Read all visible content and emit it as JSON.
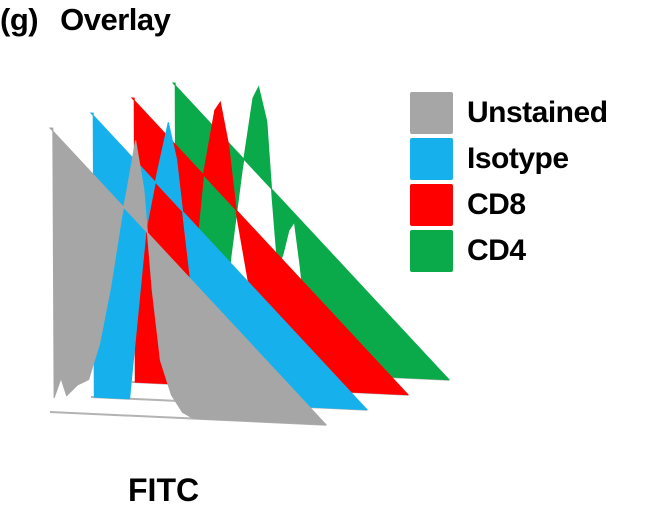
{
  "panel": {
    "label": "(g)",
    "title": "Overlay"
  },
  "chart_data": {
    "type": "area",
    "style": "offset overlay histogram (staggered)",
    "title": "Overlay",
    "xlabel": "FITC",
    "ylabel": "",
    "grid": false,
    "legend_placement": "right",
    "x_units": "relative fluorescence channel (approx., unlabeled axis)",
    "y_units": "relative count (approx., unlabeled axis)",
    "xlim": [
      0,
      100
    ],
    "ylim": [
      0,
      100
    ],
    "series": [
      {
        "name": "Unstained",
        "color": "#a6a6a6",
        "points": [
          [
            0,
            100
          ],
          [
            1,
            100
          ],
          [
            1.5,
            5
          ],
          [
            4,
            12
          ],
          [
            6,
            6
          ],
          [
            10,
            10
          ],
          [
            14,
            12
          ],
          [
            18,
            25
          ],
          [
            22,
            45
          ],
          [
            26,
            70
          ],
          [
            28,
            80
          ],
          [
            31,
            97
          ],
          [
            34,
            80
          ],
          [
            37,
            45
          ],
          [
            40,
            20
          ],
          [
            44,
            8
          ],
          [
            48,
            2
          ],
          [
            52,
            0
          ],
          [
            100,
            0
          ]
        ]
      },
      {
        "name": "Isotype",
        "color": "#16b1ec",
        "points": [
          [
            0,
            100
          ],
          [
            0.8,
            100
          ],
          [
            1.2,
            0
          ],
          [
            14,
            0
          ],
          [
            17,
            30
          ],
          [
            20,
            60
          ],
          [
            24,
            80
          ],
          [
            28,
            98
          ],
          [
            31,
            85
          ],
          [
            34,
            60
          ],
          [
            37,
            35
          ],
          [
            40,
            10
          ],
          [
            44,
            2
          ],
          [
            48,
            0
          ],
          [
            100,
            0
          ]
        ]
      },
      {
        "name": "CD8",
        "color": "#ff0000",
        "points": [
          [
            0,
            100
          ],
          [
            0.8,
            100
          ],
          [
            1.2,
            0
          ],
          [
            20,
            0
          ],
          [
            23,
            45
          ],
          [
            26,
            75
          ],
          [
            30,
            97
          ],
          [
            32,
            100
          ],
          [
            35,
            85
          ],
          [
            38,
            60
          ],
          [
            42,
            38
          ],
          [
            46,
            25
          ],
          [
            50,
            20
          ],
          [
            53,
            22
          ],
          [
            55,
            24
          ],
          [
            58,
            12
          ],
          [
            61,
            4
          ],
          [
            64,
            0
          ],
          [
            100,
            0
          ]
        ]
      },
      {
        "name": "CD4",
        "color": "#0aa94a",
        "points": [
          [
            0,
            100
          ],
          [
            0.8,
            100
          ],
          [
            1.2,
            0
          ],
          [
            17,
            0
          ],
          [
            21,
            40
          ],
          [
            25,
            70
          ],
          [
            29,
            96
          ],
          [
            31,
            100
          ],
          [
            34,
            88
          ],
          [
            36,
            60
          ],
          [
            38,
            36
          ],
          [
            40,
            42
          ],
          [
            42,
            50
          ],
          [
            44,
            53
          ],
          [
            46,
            38
          ],
          [
            49,
            12
          ],
          [
            52,
            4
          ],
          [
            55,
            0
          ],
          [
            100,
            0
          ]
        ]
      }
    ]
  }
}
